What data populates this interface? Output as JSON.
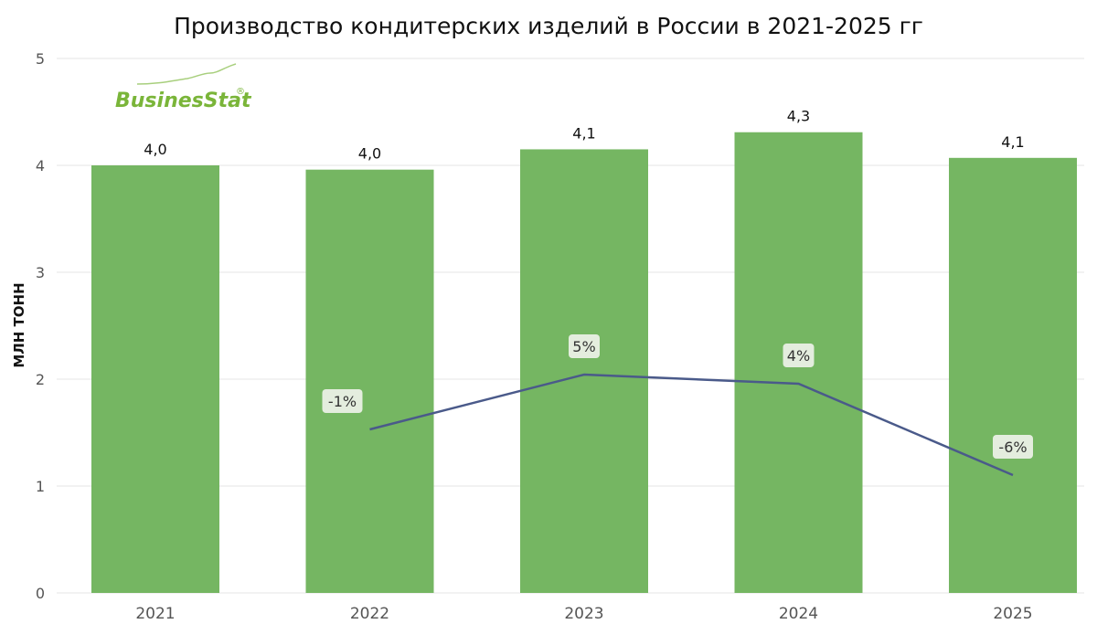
{
  "chart_data": {
    "type": "bar",
    "title": "Производство кондитерских изделий в России в 2021-2025 гг",
    "ylabel": "МЛН ТОНН",
    "xlabel": "",
    "categories": [
      "2021",
      "2022",
      "2023",
      "2024",
      "2025"
    ],
    "values": [
      4.0,
      3.96,
      4.15,
      4.31,
      4.07
    ],
    "value_labels": [
      "4,0",
      "4,0",
      "4,1",
      "4,3",
      "4,1"
    ],
    "ylim": [
      0,
      5
    ],
    "yticks": [
      "0",
      "1",
      "2",
      "3",
      "4",
      "5"
    ],
    "grid": true,
    "bar_color": "#75b662",
    "growth_line": {
      "type": "line",
      "color": "#4a5a8a",
      "categories": [
        "2022",
        "2023",
        "2024",
        "2025"
      ],
      "values": [
        -1,
        5,
        4,
        -6
      ],
      "labels": [
        "-1%",
        "5%",
        "4%",
        "-6%"
      ],
      "label_bg": "#e4edde"
    }
  },
  "logo": {
    "text": "BusinesStat",
    "mark": "®",
    "color": "#7ab539"
  }
}
